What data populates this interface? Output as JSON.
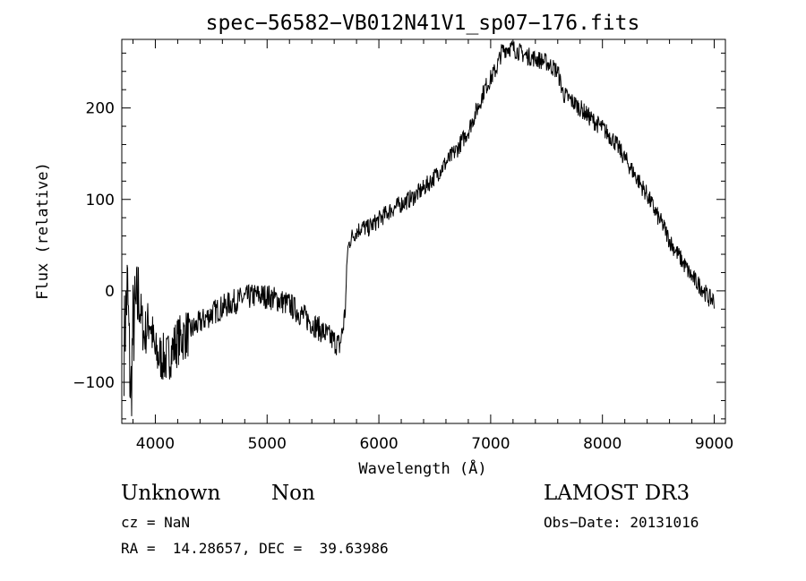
{
  "chart_data": {
    "type": "line",
    "title": "spec−56582−VB012N41V1_sp07−176.fits",
    "xlabel": "Wavelength (Å)",
    "ylabel": "Flux (relative)",
    "xlim": [
      3700,
      9100
    ],
    "ylim": [
      -145,
      275
    ],
    "xticks": [
      4000,
      5000,
      6000,
      7000,
      8000,
      9000
    ],
    "yticks": [
      -100,
      0,
      100,
      200
    ],
    "ytick_labels": [
      "−100",
      "0",
      "100",
      "200"
    ],
    "grid": false,
    "legend": "none",
    "series": [
      {
        "x": [
          3720,
          3750,
          3780,
          3800,
          3850,
          3900,
          3950,
          4000,
          4100,
          4200,
          4300,
          4400,
          4500,
          4600,
          4700,
          4800,
          4900,
          5000,
          5100,
          5200,
          5300,
          5400,
          5500,
          5600,
          5650,
          5680,
          5700,
          5720,
          5750,
          5800,
          5850,
          5900,
          6000,
          6100,
          6200,
          6300,
          6400,
          6500,
          6600,
          6700,
          6750,
          6800,
          6900,
          6950,
          7000,
          7050,
          7100,
          7150,
          7200,
          7250,
          7300,
          7400,
          7500,
          7550,
          7600,
          7650,
          7700,
          7800,
          7900,
          8000,
          8100,
          8200,
          8300,
          8400,
          8500,
          8550,
          8600,
          8700,
          8800,
          8900,
          8950,
          9000
        ],
        "y": [
          -60,
          5,
          -120,
          -40,
          -10,
          -50,
          -30,
          -70,
          -75,
          -55,
          -45,
          -35,
          -25,
          -18,
          -12,
          -8,
          -5,
          -6,
          -10,
          -15,
          -25,
          -35,
          -45,
          -55,
          -60,
          -40,
          -20,
          45,
          58,
          65,
          70,
          68,
          78,
          88,
          95,
          102,
          112,
          125,
          140,
          155,
          165,
          175,
          205,
          222,
          232,
          243,
          262,
          266,
          265,
          262,
          258,
          254,
          250,
          245,
          240,
          215,
          210,
          200,
          188,
          178,
          165,
          145,
          125,
          105,
          80,
          70,
          55,
          35,
          15,
          2,
          -8,
          -10
        ]
      }
    ]
  },
  "info": {
    "class_label": "Unknown",
    "subclass_label": "Non",
    "survey": "LAMOST DR3",
    "cz": "cz = NaN",
    "obs_date": "Obs−Date: 20131016",
    "coords": "RA =  14.28657, DEC =  39.63986"
  }
}
